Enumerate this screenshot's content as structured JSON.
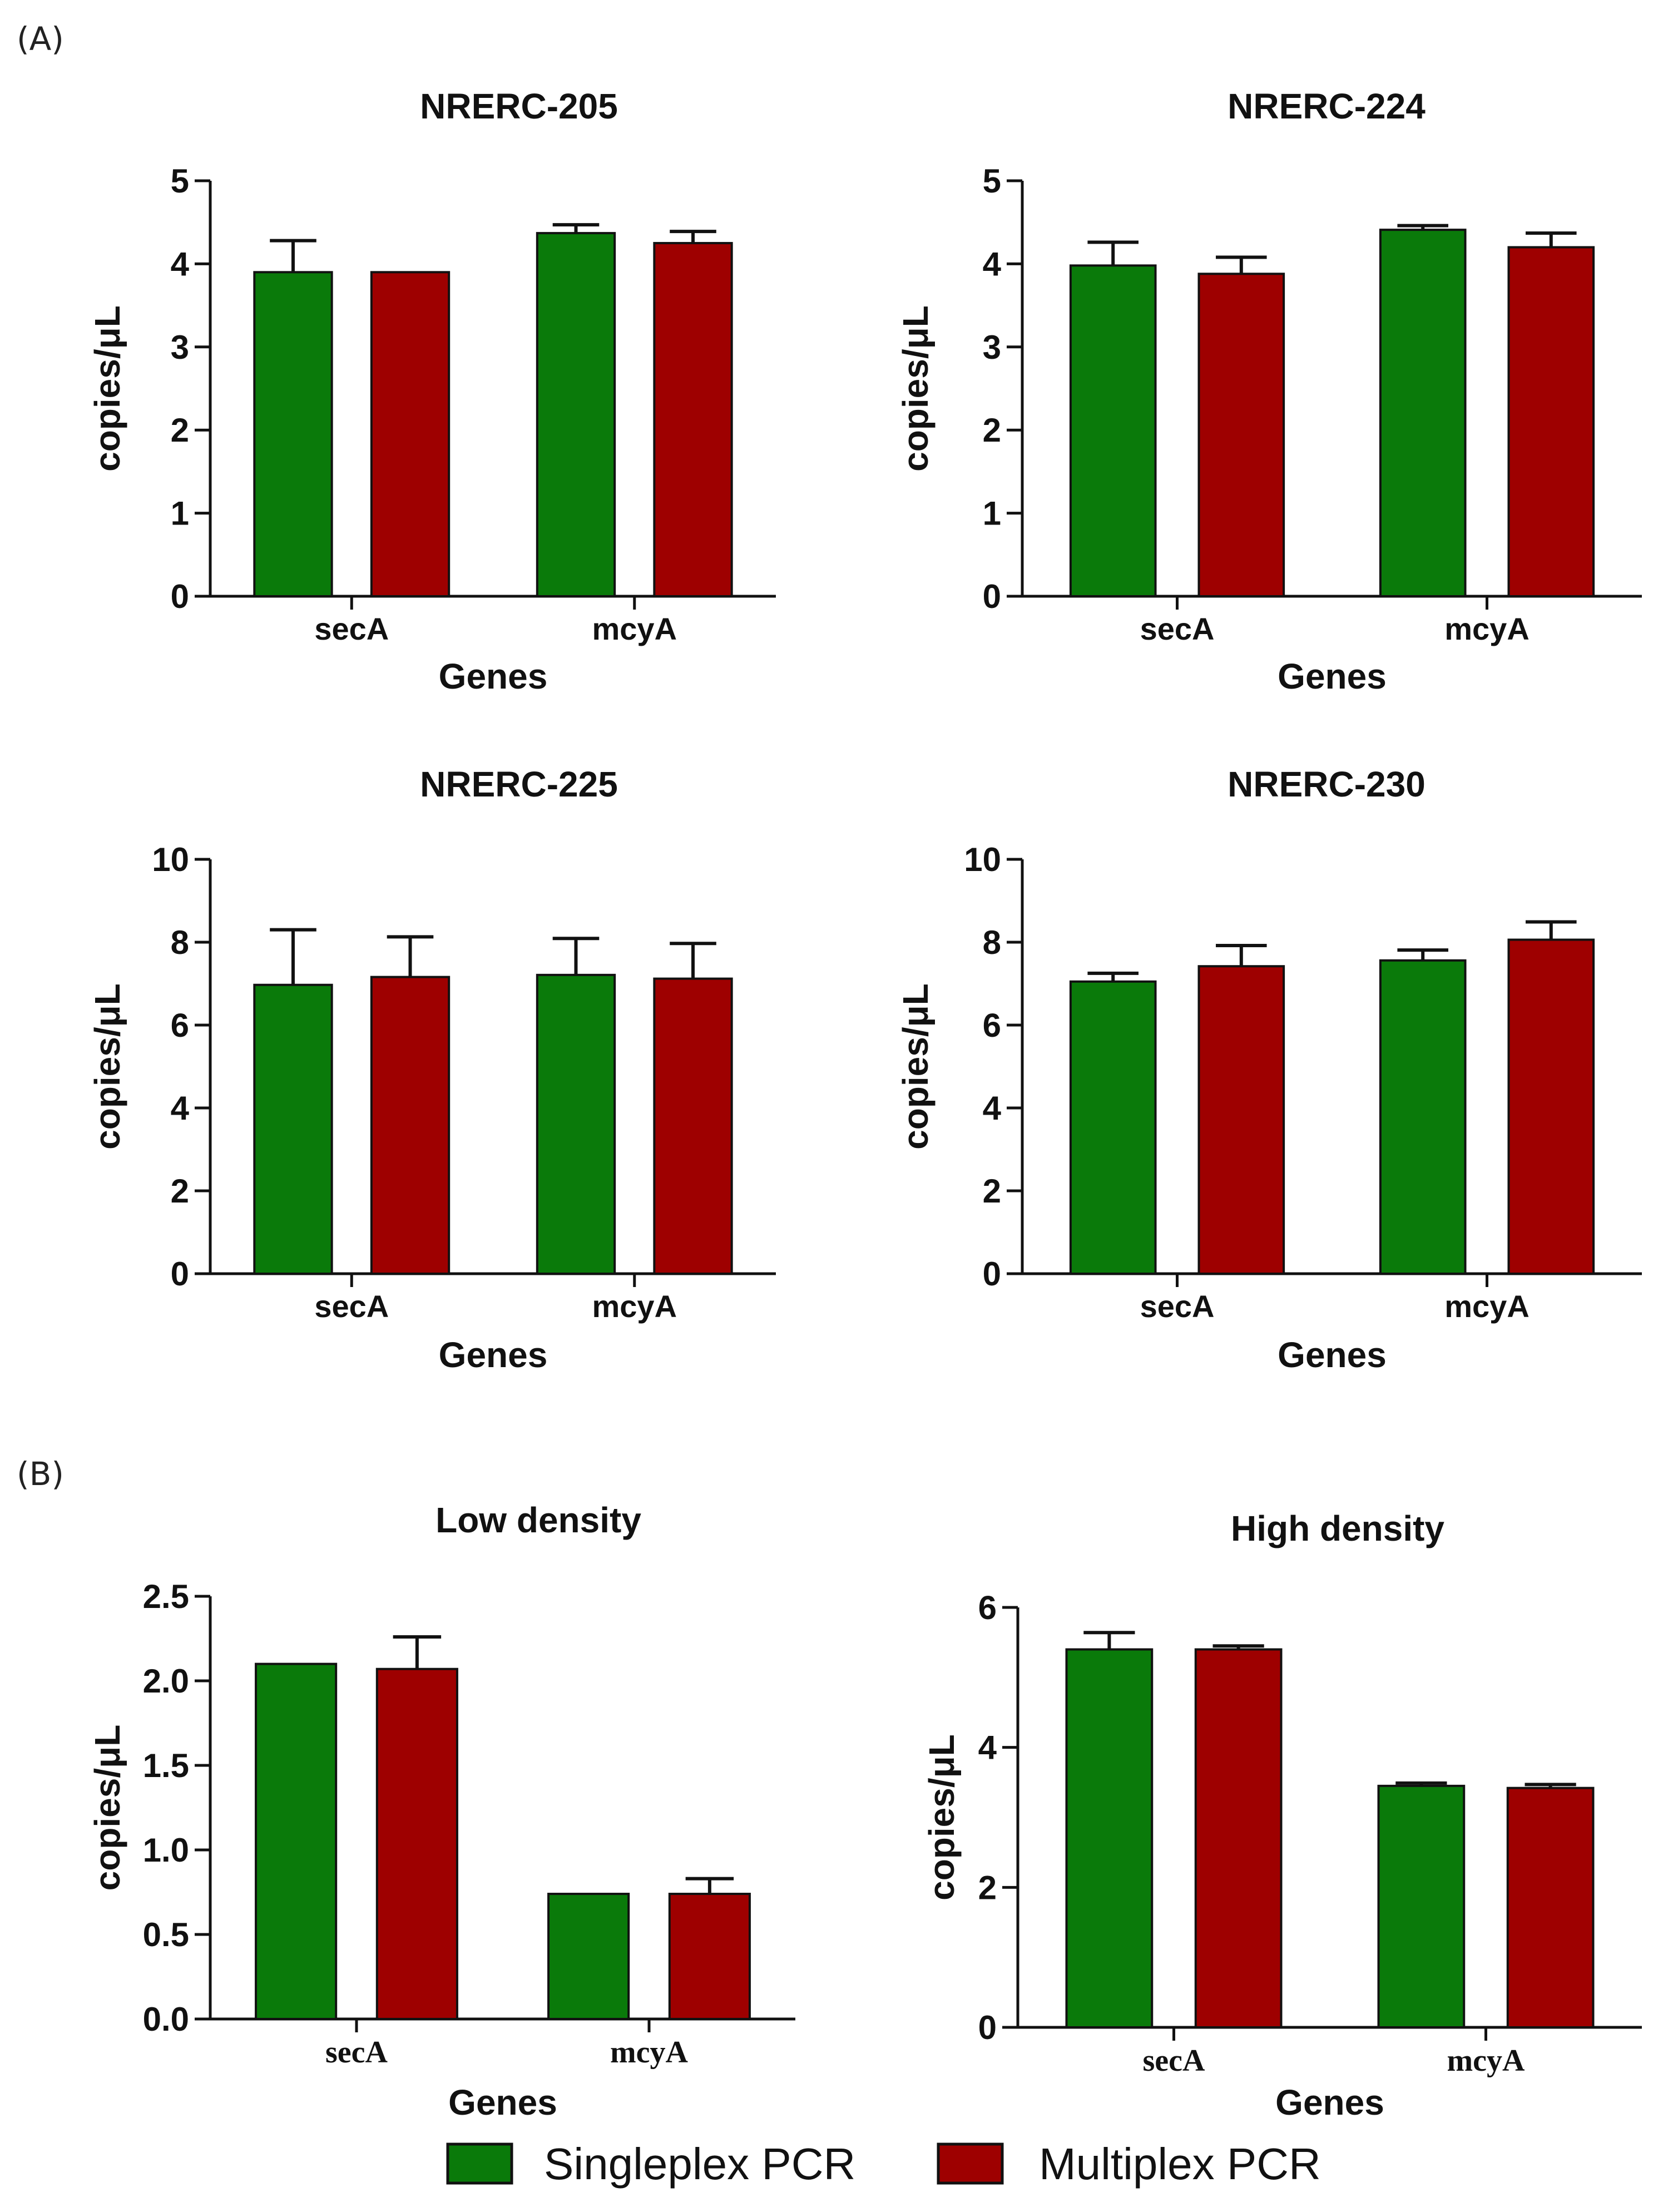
{
  "panel_labels": {
    "a": "(A)",
    "b": "(B)"
  },
  "legend": [
    {
      "label": "Singleplex PCR",
      "color": "#0a7a0a"
    },
    {
      "label": "Multiplex PCR",
      "color": "#9e0000"
    }
  ],
  "chart_data": [
    {
      "type": "bar",
      "title": "NRERC-205",
      "categories": [
        "secA",
        "mcyA"
      ],
      "xlabel": "Genes",
      "ylabel": "copies/μL",
      "ylim": [
        0,
        5
      ],
      "yticks": [
        "0",
        "1",
        "2",
        "3",
        "4",
        "5"
      ],
      "series": [
        {
          "name": "Singleplex PCR",
          "values": [
            3.9,
            4.37
          ],
          "errors": [
            0.38,
            0.1
          ]
        },
        {
          "name": "Multiplex PCR",
          "values": [
            3.9,
            4.25
          ],
          "errors": [
            0,
            0.14
          ]
        }
      ]
    },
    {
      "type": "bar",
      "title": "NRERC-224",
      "categories": [
        "secA",
        "mcyA"
      ],
      "xlabel": "Genes",
      "ylabel": "copies/μL",
      "ylim": [
        0,
        5
      ],
      "yticks": [
        "0",
        "1",
        "2",
        "3",
        "4",
        "5"
      ],
      "series": [
        {
          "name": "Singleplex PCR",
          "values": [
            3.98,
            4.41
          ],
          "errors": [
            0.28,
            0.05
          ]
        },
        {
          "name": "Multiplex PCR",
          "values": [
            3.88,
            4.2
          ],
          "errors": [
            0.2,
            0.17
          ]
        }
      ]
    },
    {
      "type": "bar",
      "title": "NRERC-225",
      "categories": [
        "secA",
        "mcyA"
      ],
      "xlabel": "Genes",
      "ylabel": "copies/μL",
      "ylim": [
        0,
        10
      ],
      "yticks": [
        "0",
        "2",
        "4",
        "6",
        "8",
        "10"
      ],
      "series": [
        {
          "name": "Singleplex PCR",
          "values": [
            6.97,
            7.21
          ],
          "errors": [
            1.33,
            0.88
          ]
        },
        {
          "name": "Multiplex PCR",
          "values": [
            7.16,
            7.12
          ],
          "errors": [
            0.97,
            0.85
          ]
        }
      ]
    },
    {
      "type": "bar",
      "title": "NRERC-230",
      "categories": [
        "secA",
        "mcyA"
      ],
      "xlabel": "Genes",
      "ylabel": "copies/μL",
      "ylim": [
        0,
        10
      ],
      "yticks": [
        "0",
        "2",
        "4",
        "6",
        "8",
        "10"
      ],
      "series": [
        {
          "name": "Singleplex PCR",
          "values": [
            7.05,
            7.56
          ],
          "errors": [
            0.2,
            0.25
          ]
        },
        {
          "name": "Multiplex PCR",
          "values": [
            7.42,
            8.06
          ],
          "errors": [
            0.5,
            0.43
          ]
        }
      ]
    },
    {
      "type": "bar",
      "title": "Low density",
      "categories": [
        "secA",
        "mcyA"
      ],
      "xlabel": "Genes",
      "ylabel": "copies/μL",
      "ylim": [
        0,
        2.5
      ],
      "yticks": [
        "0.0",
        "0.5",
        "1.0",
        "1.5",
        "2.0",
        "2.5"
      ],
      "series": [
        {
          "name": "Singleplex PCR",
          "values": [
            2.1,
            0.74
          ],
          "errors": [
            0,
            0
          ]
        },
        {
          "name": "Multiplex PCR",
          "values": [
            2.07,
            0.74
          ],
          "errors": [
            0.19,
            0.09
          ]
        }
      ]
    },
    {
      "type": "bar",
      "title": "High density",
      "categories": [
        "secA",
        "mcyA"
      ],
      "xlabel": "Genes",
      "ylabel": "copies/μL",
      "ylim": [
        0,
        6
      ],
      "yticks": [
        "0",
        "2",
        "4",
        "6"
      ],
      "series": [
        {
          "name": "Singleplex PCR",
          "values": [
            5.4,
            3.45
          ],
          "errors": [
            0.24,
            0.04
          ]
        },
        {
          "name": "Multiplex PCR",
          "values": [
            5.4,
            3.42
          ],
          "errors": [
            0.05,
            0.05
          ]
        }
      ]
    }
  ]
}
